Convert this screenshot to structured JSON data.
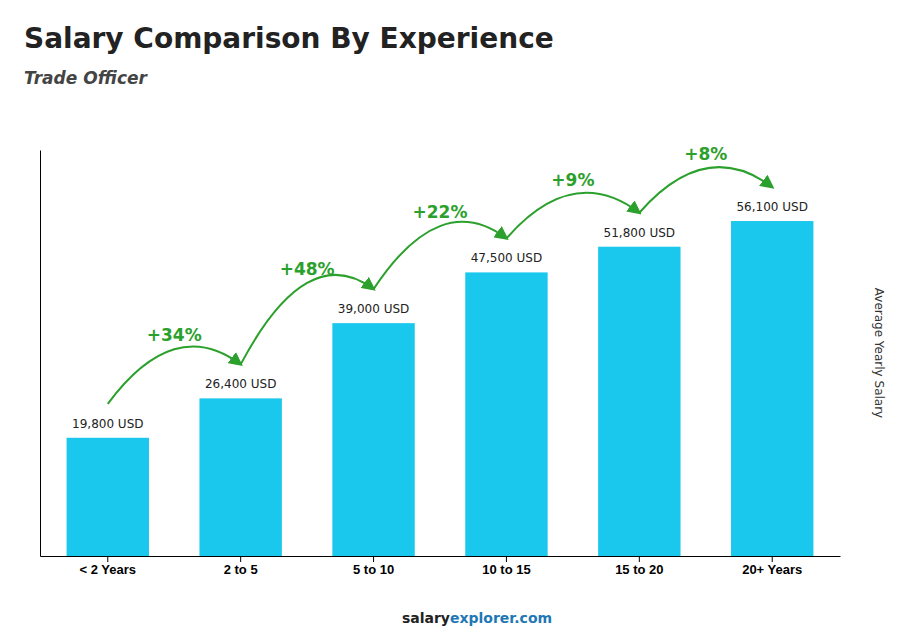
{
  "chart_data": {
    "type": "bar",
    "title": "Salary Comparison By Experience",
    "subtitle": "Trade Officer",
    "ylabel": "Average Yearly Salary",
    "footer": [
      "salary",
      "explorer.com"
    ],
    "categories": [
      "< 2 Years",
      "2 to 5",
      "5 to 10",
      "10 to 15",
      "15 to 20",
      "20+ Years"
    ],
    "values": [
      19800,
      26400,
      39000,
      47500,
      51800,
      56100
    ],
    "value_labels": [
      "19,800 USD",
      "26,400 USD",
      "39,000 USD",
      "47,500 USD",
      "51,800 USD",
      "56,100 USD"
    ],
    "annotations": [
      "+34%",
      "+48%",
      "+22%",
      "+9%",
      "+8%"
    ],
    "color": "#1AC8ED",
    "ylim": [
      0,
      68000
    ],
    "data_labels": true,
    "tick_labels": "x",
    "grid": false
  }
}
